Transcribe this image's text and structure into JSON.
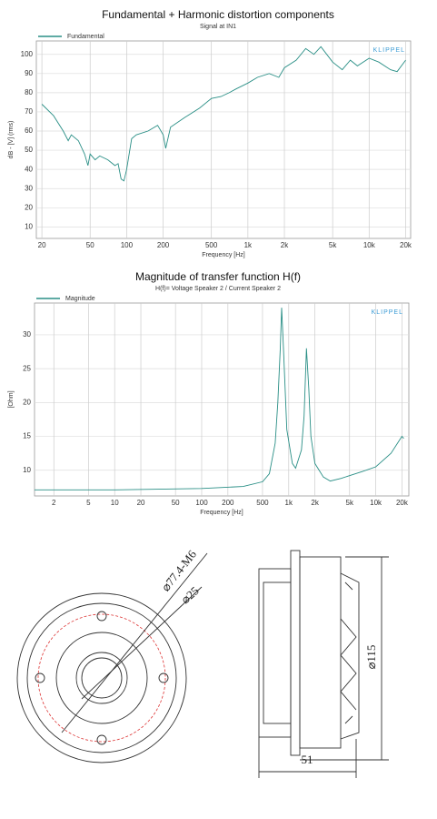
{
  "chart_data": [
    {
      "type": "line",
      "title": "Fundamental + Harmonic distortion components",
      "subtitle": "Signal at IN1",
      "watermark": "KLIPPEL",
      "xlabel": "Frequency [Hz]",
      "ylabel": "dB - [V] (rms)",
      "log_x": true,
      "grid": true,
      "x": [
        20,
        25,
        30,
        33,
        35,
        40,
        45,
        48,
        50,
        55,
        60,
        70,
        80,
        85,
        90,
        95,
        100,
        110,
        120,
        150,
        180,
        200,
        210,
        230,
        300,
        400,
        500,
        600,
        700,
        800,
        1000,
        1200,
        1500,
        1800,
        2000,
        2500,
        3000,
        3500,
        4000,
        5000,
        6000,
        7000,
        8000,
        10000,
        12000,
        15000,
        17000,
        20000
      ],
      "series": [
        {
          "name": "Fundamental",
          "color": "#2a8f86",
          "values": [
            74,
            68,
            60,
            55,
            58,
            55,
            48,
            42,
            48,
            45,
            47,
            45,
            42,
            43,
            35,
            34,
            40,
            56,
            58,
            60,
            63,
            58,
            51,
            62,
            67,
            72,
            77,
            78,
            80,
            82,
            85,
            88,
            90,
            88,
            93,
            97,
            103,
            100,
            104,
            96,
            92,
            97,
            94,
            98,
            96,
            92,
            91,
            97
          ]
        }
      ],
      "xlim": [
        18,
        22000
      ],
      "ylim": [
        4,
        107
      ],
      "xticks": [
        20,
        50,
        100,
        200,
        500,
        {
          "value": 1000,
          "label": "1k"
        },
        {
          "value": 2000,
          "label": "2k"
        },
        {
          "value": 5000,
          "label": "5k"
        },
        {
          "value": 10000,
          "label": "10k"
        },
        {
          "value": 20000,
          "label": "20k"
        }
      ],
      "yticks": [
        10,
        20,
        30,
        40,
        50,
        60,
        70,
        80,
        90,
        100
      ]
    },
    {
      "type": "line",
      "title": "Magnitude of transfer function H(f)",
      "subtitle": "H(f)= Voltage Speaker 2 / Current Speaker 2",
      "watermark": "KLIPPEL",
      "xlabel": "Frequency [Hz]",
      "ylabel": "[Ohm]",
      "log_x": true,
      "grid": true,
      "x": [
        1.2,
        10,
        100,
        300,
        500,
        600,
        700,
        750,
        800,
        830,
        870,
        950,
        1100,
        1200,
        1400,
        1500,
        1600,
        1700,
        1800,
        2000,
        2500,
        3000,
        4000,
        5000,
        7000,
        10000,
        15000,
        20000,
        21000
      ],
      "series": [
        {
          "name": "Magnitude",
          "color": "#2a8f86",
          "values": [
            7.1,
            7.1,
            7.3,
            7.6,
            8.3,
            9.5,
            14,
            20,
            28,
            34,
            28,
            16,
            11,
            10.3,
            13,
            18,
            28,
            22,
            15,
            11,
            9,
            8.4,
            8.8,
            9.2,
            9.8,
            10.5,
            12.5,
            15,
            14.7
          ]
        }
      ],
      "xlim": [
        1.2,
        24000
      ],
      "ylim": [
        6.2,
        34.7
      ],
      "xticks": [
        2,
        5,
        10,
        20,
        50,
        100,
        200,
        500,
        {
          "value": 1000,
          "label": "1k"
        },
        {
          "value": 2000,
          "label": "2k"
        },
        {
          "value": 5000,
          "label": "5k"
        },
        {
          "value": 10000,
          "label": "10k"
        },
        {
          "value": 20000,
          "label": "20k"
        }
      ],
      "yticks": [
        10,
        15,
        20,
        25,
        30
      ]
    }
  ],
  "drawing": {
    "front_labels": [
      "⌀77.4-M6",
      "⌀25"
    ],
    "side_labels": [
      "⌀115",
      "51"
    ]
  }
}
